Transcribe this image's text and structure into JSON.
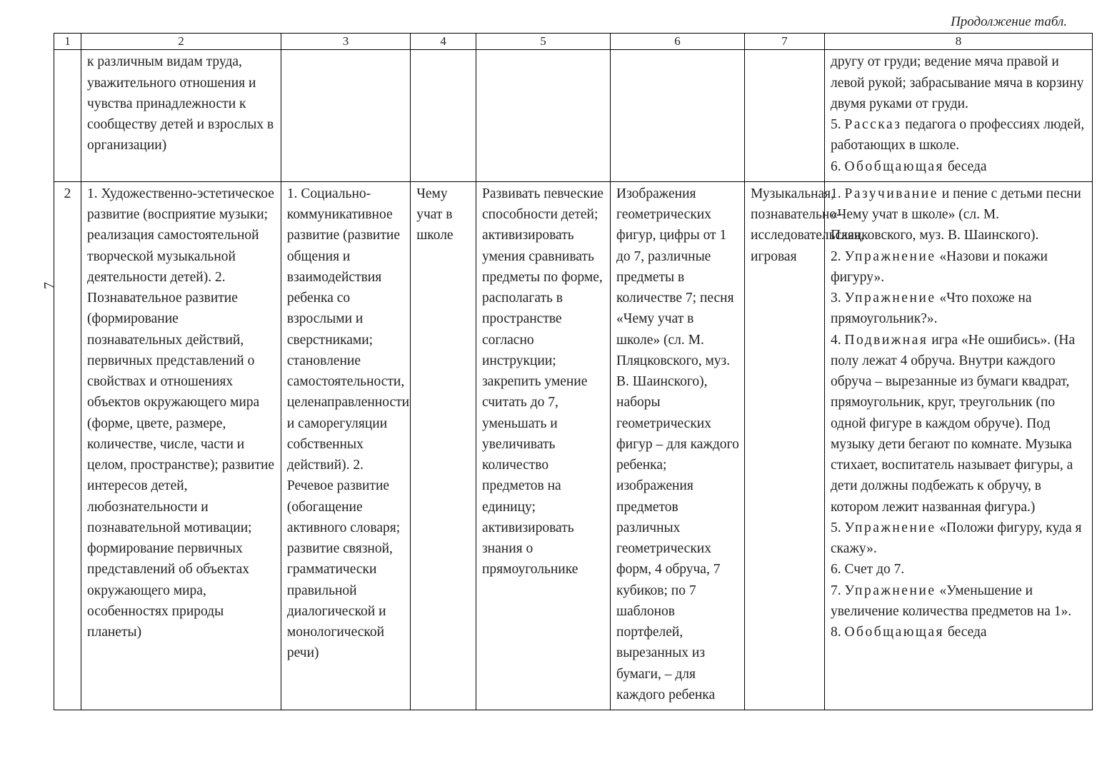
{
  "continuation_label": "Продолжение табл.",
  "side_page_number": "7",
  "header_cols": [
    "1",
    "2",
    "3",
    "4",
    "5",
    "6",
    "7",
    "8"
  ],
  "row1": {
    "col1": "",
    "col2": "к различным видам труда, уважительного отношения и чувства принадлежности к сообществу детей и взрослых в организации)",
    "col3": "",
    "col4": "",
    "col5": "",
    "col6": "",
    "col7": "",
    "col8_pref1": "другу от груди; ведение мяча правой и левой рукой; забрасывание мяча в корзину двумя руками от груди.",
    "col8_line5_a": "5. ",
    "col8_line5_word": "Рассказ",
    "col8_line5_b": " педагога о профессиях людей, работающих в школе.",
    "col8_line6_a": "6. ",
    "col8_line6_word": "Обобщающая",
    "col8_line6_b": " беседа"
  },
  "row2": {
    "col1": "2",
    "col2": "1. Художественно-эстетическое развитие (восприятие музыки; реализация самостоятельной творческой музыкальной деятельности детей).\n2. Познавательное развитие (формирование познавательных действий, первичных представлений о свойствах и отношениях объектов окружающего мира (форме, цвете, размере, количестве, числе, части и целом, пространстве); развитие интересов детей, любознательности и познавательной мотивации; формирование первичных представлений об объектах окружающего мира, особенностях природы планеты)",
    "col3": "1. Социально-коммуникативное развитие (развитие общения и взаимодействия ребенка со взрослыми и сверстниками; становление самостоятельности, целенаправленности и саморегуляции собственных действий).\n2. Речевое развитие (обогащение активного словаря; развитие связной, грамматически правильной диалогической и монологической речи)",
    "col4": "Чему учат в школе",
    "col5": "Развивать певческие способности детей; активизировать умения сравнивать предметы по форме, располагать в пространстве согласно инструкции; закрепить умение считать до 7, уменьшать и увеличивать количество предметов на единицу; активизировать знания о прямоугольнике",
    "col6": "Изображения геометрических фигур, цифры от 1 до 7, различные предметы в количестве 7; песня «Чему учат в школе» (сл. М. Пляцковского, муз. В. Шаинского), наборы геометрических фигур – для каждого ребенка; изображения предметов различных геометрических форм, 4 обруча, 7 кубиков; по 7 шаблонов портфелей, вырезанных из бумаги, – для каждого ребенка",
    "col7": "Музыкальная, познавательно-исследовательская, игровая",
    "col8_l1a": "1. ",
    "col8_l1w": "Разучивание",
    "col8_l1b": " и пение с детьми песни «Чему учат в школе» (сл. М. Пляцковского, муз. В. Шаинского).",
    "col8_l2a": "2. ",
    "col8_l2w": "Упражнение",
    "col8_l2b": " «Назови и покажи фигуру».",
    "col8_l3a": "3. ",
    "col8_l3w": "Упражнение",
    "col8_l3b": " «Что похоже на прямоугольник?».",
    "col8_l4a": "4. ",
    "col8_l4w": "Подвижная",
    "col8_l4b": " игра «Не ошибись». (На полу лежат 4 обруча. Внутри каждого обруча – вырезанные из бумаги квадрат, прямоугольник, круг, треугольник (по одной фигуре в каждом обруче). Под музыку дети бегают по комнате. Музыка стихает, воспитатель называет фигуры, а дети должны подбежать к обручу, в котором лежит названная фигура.)",
    "col8_l5a": "5. ",
    "col8_l5w": "Упражнение",
    "col8_l5b": " «Положи фигуру, куда я скажу».",
    "col8_l6": "6. Счет до 7.",
    "col8_l7a": "7. ",
    "col8_l7w": "Упражнение",
    "col8_l7b": " «Уменьшение и увеличение количества предметов на 1».",
    "col8_l8a": "8. ",
    "col8_l8w": "Обобщающая",
    "col8_l8b": " беседа"
  }
}
